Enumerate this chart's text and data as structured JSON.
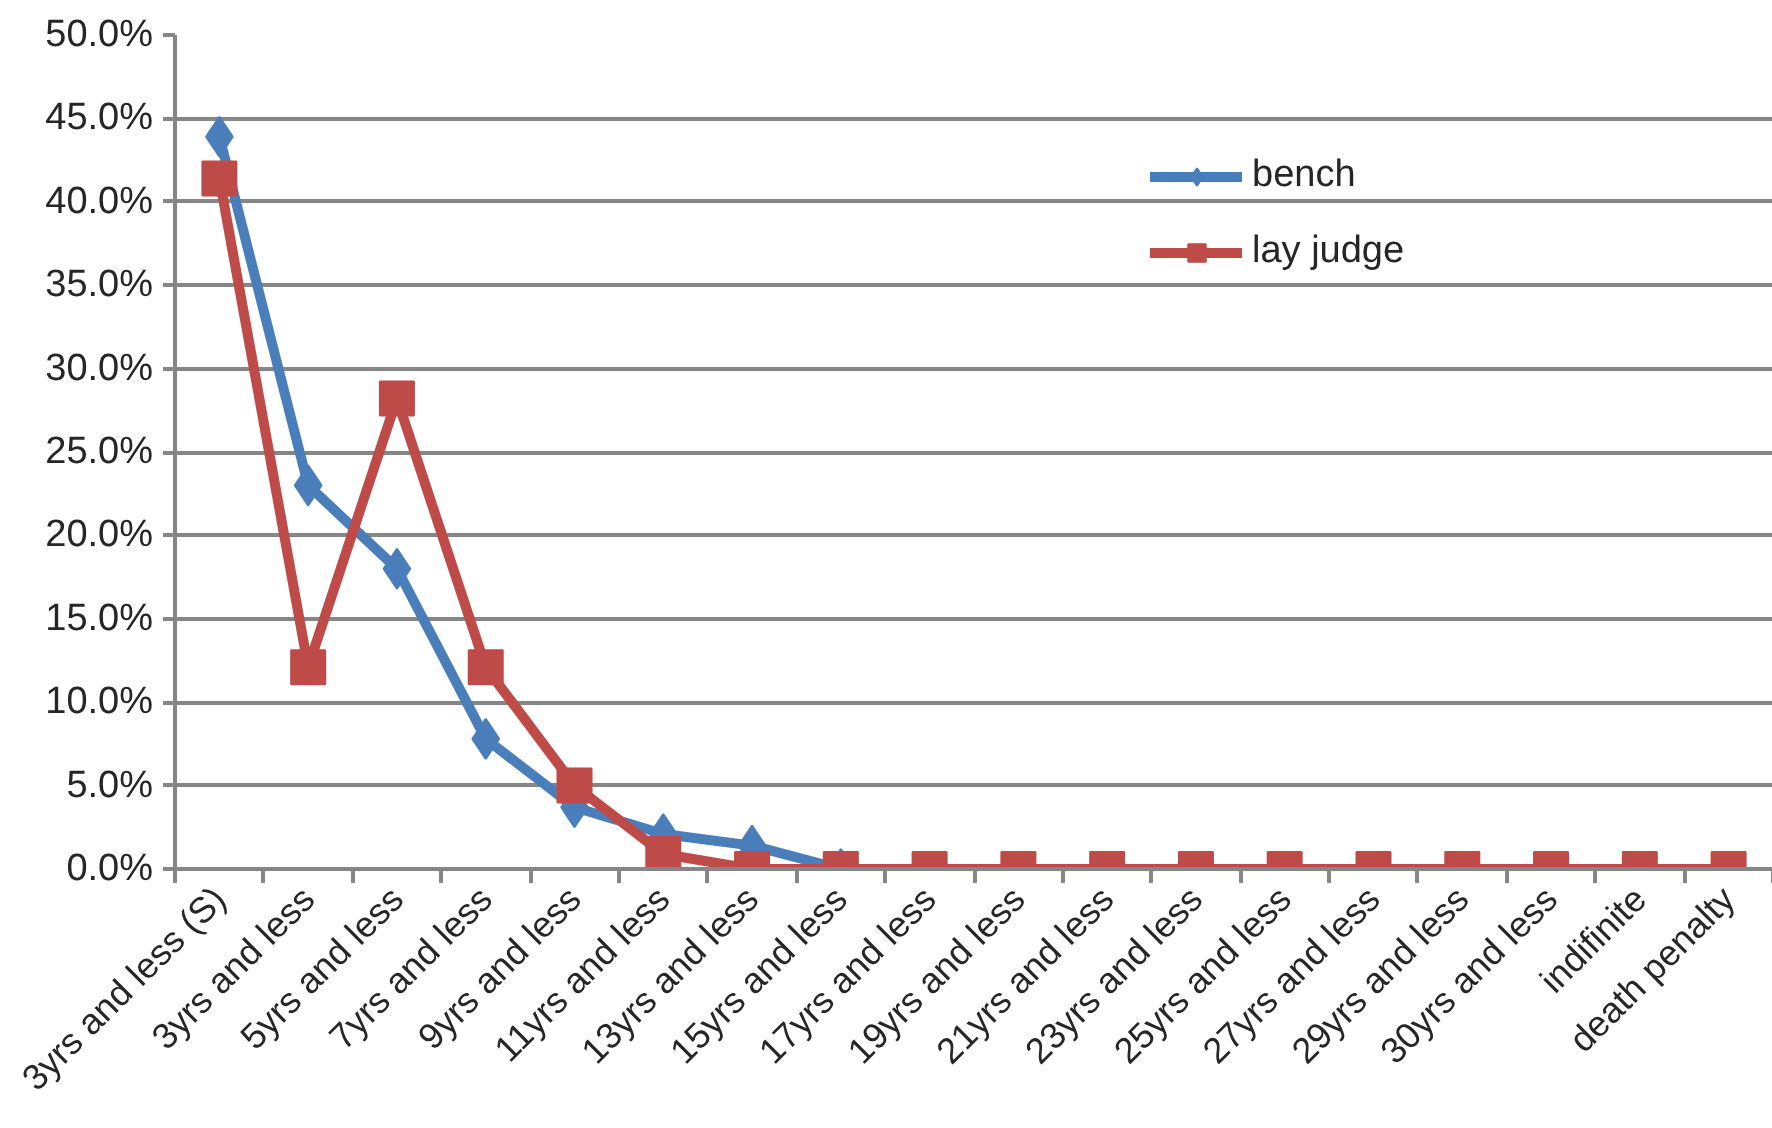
{
  "chart_data": {
    "type": "line",
    "categories": [
      "3yrs and less (S)",
      "3yrs and less",
      "5yrs and less",
      "7yrs and less",
      "9yrs and less",
      "11yrs and less",
      "13yrs and less",
      "15yrs and less",
      "17yrs and less",
      "19yrs and less",
      "21yrs and less",
      "23yrs and less",
      "25yrs and less",
      "27yrs and less",
      "29yrs and less",
      "30yrs and less",
      "indifinite",
      "death penalty"
    ],
    "series": [
      {
        "name": "bench",
        "color": "#4a7ebb",
        "marker": "diamond",
        "values": [
          43.9,
          23.0,
          18.0,
          7.8,
          3.7,
          2.1,
          1.4,
          0,
          null,
          null,
          null,
          null,
          null,
          null,
          null,
          null,
          null,
          null
        ]
      },
      {
        "name": "lay judge",
        "color": "#be4b48",
        "marker": "square",
        "values": [
          41.4,
          12.1,
          28.2,
          12.1,
          5.0,
          0.9,
          0,
          0,
          0,
          0,
          0,
          0,
          0,
          0,
          0,
          0,
          0,
          0
        ]
      }
    ],
    "ylim": [
      0,
      50
    ],
    "yticks": [
      {
        "value": 0,
        "label": "0.0%"
      },
      {
        "value": 5,
        "label": "5.0%"
      },
      {
        "value": 10,
        "label": "10.0%"
      },
      {
        "value": 15,
        "label": "15.0%"
      },
      {
        "value": 20,
        "label": "20.0%"
      },
      {
        "value": 25,
        "label": "25.0%"
      },
      {
        "value": 30,
        "label": "30.0%"
      },
      {
        "value": 35,
        "label": "35.0%"
      },
      {
        "value": 40,
        "label": "40.0%"
      },
      {
        "value": 45,
        "label": "45.0%"
      },
      {
        "value": 50,
        "label": "50.0%"
      }
    ],
    "grid": "y",
    "legend": "top right"
  }
}
